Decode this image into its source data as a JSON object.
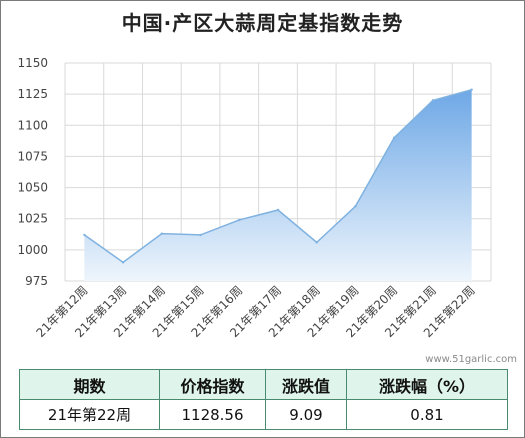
{
  "title": "中国·产区大蒜周定基指数走势",
  "watermark": "www.51garlic.com",
  "chart_data": {
    "type": "area",
    "title": "中国·产区大蒜周定基指数走势",
    "categories": [
      "21年第12周",
      "21年第13周",
      "21年第14周",
      "21年第15周",
      "21年第16周",
      "21年第17周",
      "21年第18周",
      "21年第19周",
      "21年第20周",
      "21年第21周",
      "21年第22周"
    ],
    "values": [
      1012,
      990,
      1013,
      1012,
      1024,
      1032,
      1006,
      1035,
      1090,
      1120,
      1128.56
    ],
    "ylim": [
      975,
      1150
    ],
    "yticks": [
      975,
      1000,
      1025,
      1050,
      1075,
      1100,
      1125,
      1150
    ],
    "grid": true,
    "line_color": "#7fb2e0",
    "fill_top_color": "#6ea8e6",
    "fill_bottom_color": "#eef5fc"
  },
  "table": {
    "headers": [
      "期数",
      "价格指数",
      "涨跌值",
      "涨跌幅（%）"
    ],
    "row": [
      "21年第22周",
      "1128.56",
      "9.09",
      "0.81"
    ]
  }
}
